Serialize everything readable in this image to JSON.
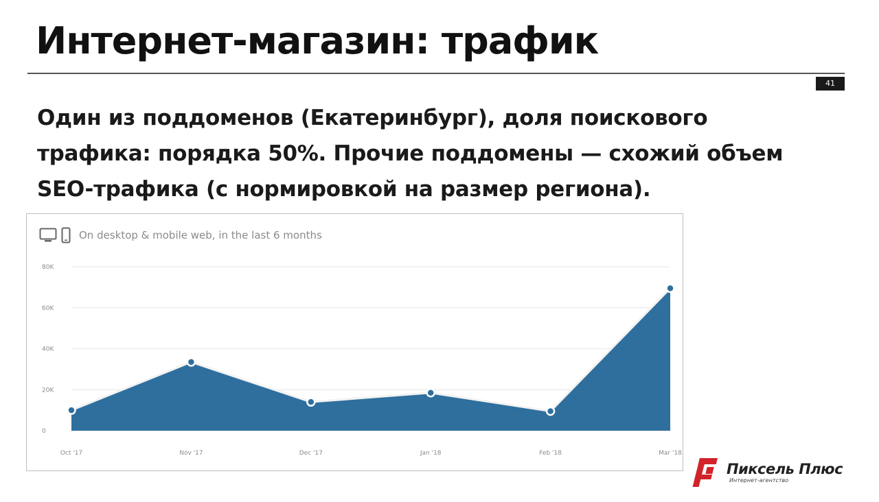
{
  "slide": {
    "title": "Интернет-магазин: трафик",
    "number": "41",
    "body": "Один из поддоменов (Екатеринбург), доля поискового трафика: порядка 50%. Прочие поддомены — схожий объем SEO-трафика (с нормировкой на размер региона)."
  },
  "chart_header": {
    "text": "On desktop & mobile web, in the last 6 months",
    "icons": [
      "desktop-icon",
      "mobile-icon"
    ]
  },
  "chart_data": {
    "type": "area",
    "categories": [
      "Oct '17",
      "Nov '17",
      "Dec '17",
      "Jan '18",
      "Feb '18",
      "Mar '18"
    ],
    "series": [
      {
        "values": [
          10000,
          33500,
          14000,
          18500,
          9500,
          69500
        ]
      }
    ],
    "ylim": [
      0,
      80000
    ],
    "yticks": [
      0,
      20000,
      40000,
      60000,
      80000
    ],
    "ytick_labels": [
      "0",
      "20K",
      "40K",
      "60K",
      "80K"
    ],
    "grid": true,
    "colors": {
      "fill": "#2e6f9e",
      "line": "#f2f2f2",
      "point": "#2e6f9e",
      "grid": "#e6e6e6",
      "tick": "#8a8a8a"
    }
  },
  "brand": {
    "name": "Пиксель Плюс",
    "subtitle": "Интернет-агентство",
    "colors": {
      "logo": "#d2232a"
    }
  }
}
